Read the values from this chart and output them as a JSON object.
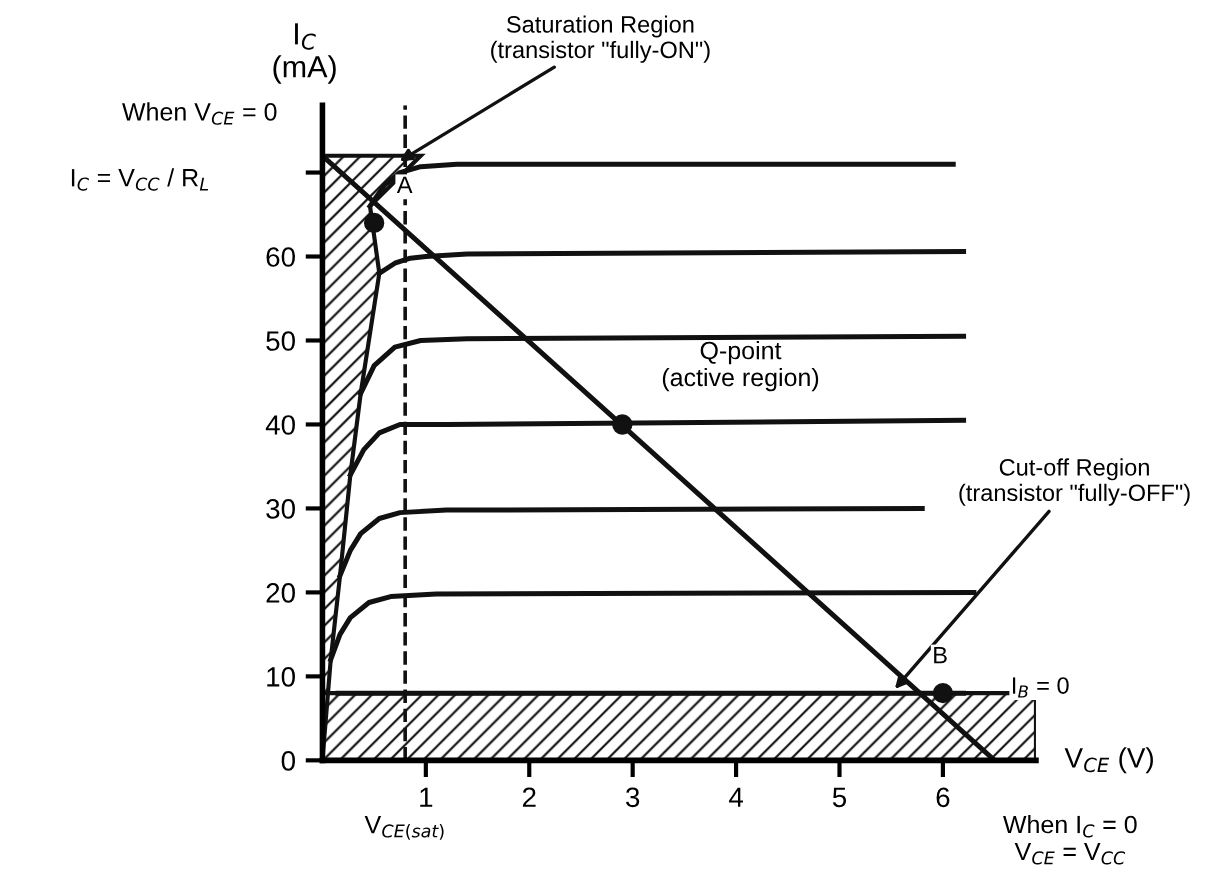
{
  "chart_data": {
    "type": "line",
    "xlabel": "V$_{CE}$ (V)",
    "ylabel": "I$_{C}$\n(mA)",
    "xlim": [
      0,
      6.9
    ],
    "ylim": [
      0,
      78
    ],
    "xticks": [
      1,
      2,
      3,
      4,
      5,
      6
    ],
    "yticks": [
      0,
      10,
      20,
      30,
      40,
      50,
      60,
      {
        "value": 70,
        "label": null
      }
    ],
    "grid": false,
    "legend": false,
    "line_style": "solid",
    "series": [
      {
        "color": "#111111",
        "x": [
          0.46,
          0.6,
          0.75,
          0.95,
          1.3,
          6.1
        ],
        "values": [
          66,
          68.5,
          70,
          70.7,
          71,
          71
        ]
      },
      {
        "color": "#111111",
        "x": [
          0.55,
          0.7,
          0.85,
          1.0,
          1.4,
          6.2
        ],
        "values": [
          58,
          59.2,
          59.8,
          60,
          60.3,
          60.6
        ]
      },
      {
        "color": "#111111",
        "x": [
          0.37,
          0.5,
          0.7,
          0.95,
          1.4,
          6.2
        ],
        "values": [
          43.7,
          47,
          49.2,
          50,
          50.2,
          50.5
        ]
      },
      {
        "color": "#111111",
        "x": [
          0.27,
          0.4,
          0.55,
          0.75,
          1.2,
          6.2
        ],
        "values": [
          34,
          37,
          39,
          40,
          40,
          40.5
        ]
      },
      {
        "color": "#111111",
        "x": [
          0.17,
          0.27,
          0.37,
          0.55,
          0.75,
          1.2,
          5.8
        ],
        "values": [
          22,
          25,
          27,
          28.8,
          29.5,
          29.8,
          30
        ]
      },
      {
        "color": "#111111",
        "x": [
          0.08,
          0.17,
          0.27,
          0.45,
          0.66,
          1.1,
          6.3
        ],
        "values": [
          12,
          15,
          17,
          18.8,
          19.5,
          19.8,
          20
        ]
      },
      {
        "color": "#111111",
        "x": [
          0.15,
          6.2
        ],
        "values": [
          8,
          8
        ]
      },
      {
        "color": "#111111",
        "x": [
          0,
          6.5
        ],
        "values": [
          72,
          0
        ]
      },
      {
        "type": "scatter",
        "marker": "circle",
        "color": "#111111",
        "x": [
          0.5,
          2.9,
          6
        ],
        "values": [
          64,
          40,
          8
        ]
      }
    ],
    "bands": [
      {
        "axis": "y",
        "from": 0,
        "to": 8,
        "color": "#111111"
      }
    ],
    "ref_lines": [
      {
        "axis": "x",
        "value": 0.8,
        "label": "V$_{CE(sat)}$",
        "line_style": "dashed",
        "color": "#111111"
      }
    ],
    "annotations": [
      {
        "text": "Saturation Region\n(transistor \"fully-ON\")",
        "x": 0.7,
        "y": 71
      },
      "Q-point\n(active region)",
      {
        "text": "Cut-off Region\n(transistor \"fully-OFF\")",
        "x": 5.5,
        "y": 8
      },
      {
        "text": "A",
        "x": 0.5,
        "y": 64
      },
      {
        "text": "B",
        "x": 6,
        "y": 8
      },
      {
        "text": "I$_{B}$ = 0",
        "x": 6.2,
        "y": 8
      },
      "When V$_{CE}$ = 0",
      "I$_{C}$ = V$_{CC}$ / R$_{L}$",
      "When I$_{C}$ = 0\nV$_{CE}$ = V$_{CC}$"
    ]
  }
}
